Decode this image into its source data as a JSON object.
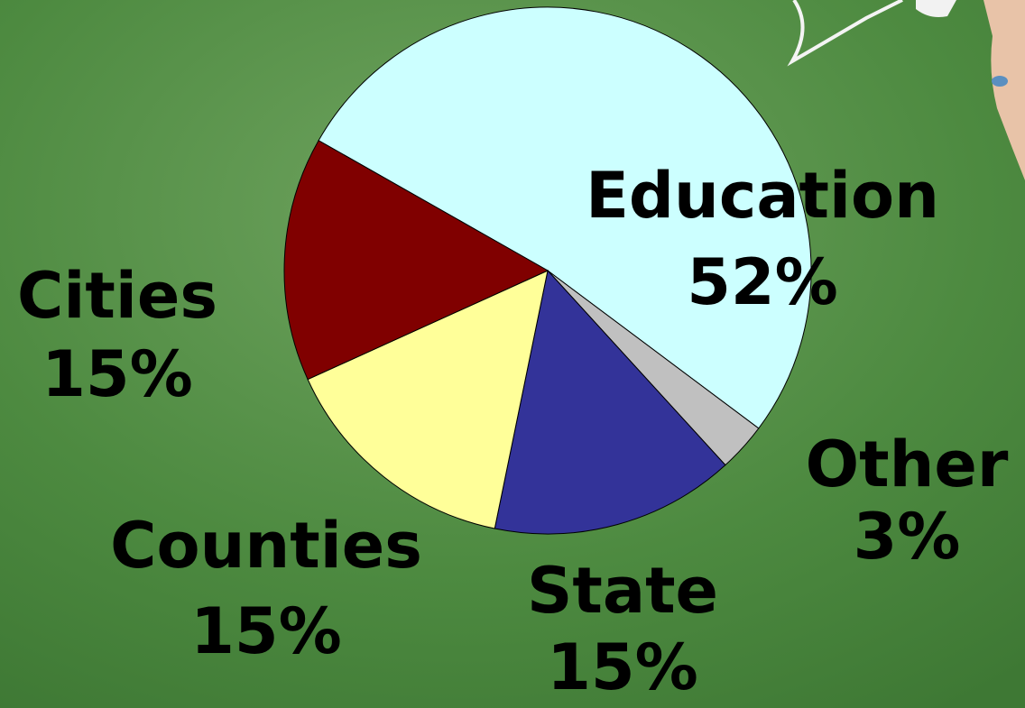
{
  "chart_data": {
    "type": "pie",
    "categories": [
      "Education",
      "Other",
      "State",
      "Counties",
      "Cities"
    ],
    "values": [
      52,
      3,
      15,
      15,
      15
    ],
    "value_labels": [
      "52%",
      "3%",
      "15%",
      "15%",
      "15%"
    ],
    "colors": [
      "#ccffff",
      "#c0c0c0",
      "#333399",
      "#ffff99",
      "#800000"
    ]
  }
}
